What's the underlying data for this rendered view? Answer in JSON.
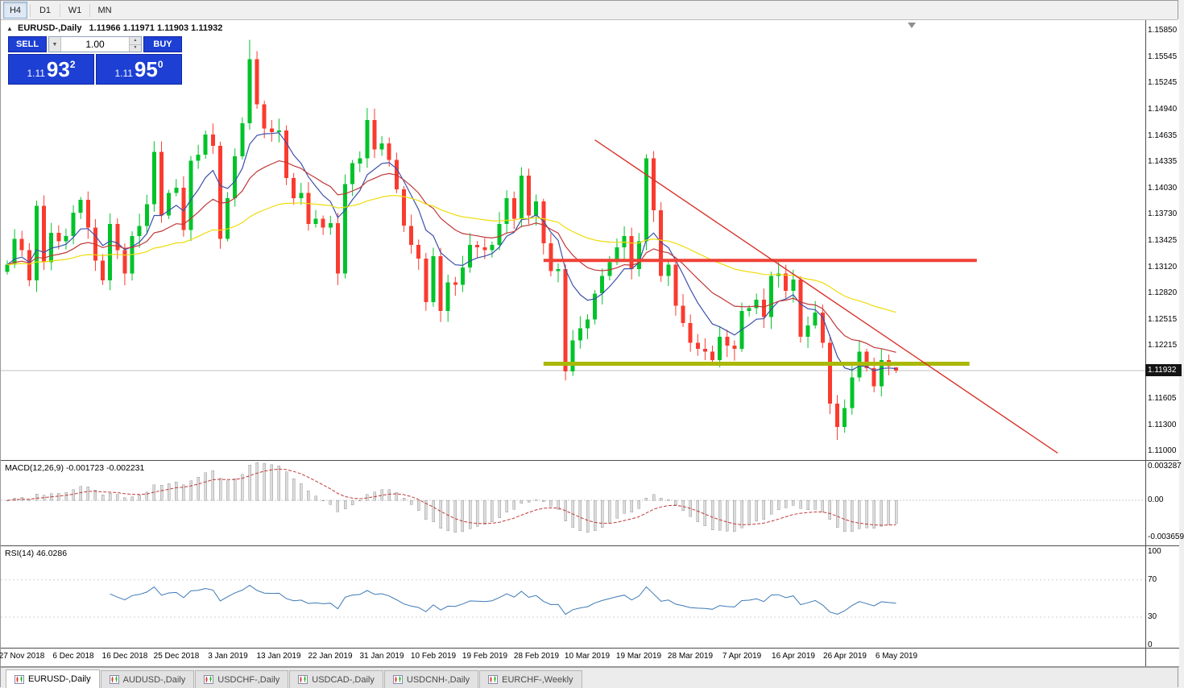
{
  "toolbar": {
    "buttons": [
      {
        "label": "H4",
        "active": true
      },
      {
        "label": "D1",
        "active": false
      },
      {
        "label": "W1",
        "active": false
      },
      {
        "label": "MN",
        "active": false
      }
    ]
  },
  "chart_header": {
    "collapse_icon": "▲",
    "symbol": "EURUSD-,Daily",
    "ohlc": "1.11966 1.11971 1.11903 1.11932"
  },
  "trade_panel": {
    "sell_button": "SELL",
    "buy_button": "BUY",
    "volume": "1.00",
    "icons": {
      "dropdown": "▼",
      "spin_up": "▲",
      "spin_down": "▼"
    },
    "sell_price": {
      "prefix": "1.11",
      "big": "93",
      "sup": "2"
    },
    "buy_price": {
      "prefix": "1.11",
      "big": "95",
      "sup": "0"
    }
  },
  "price_axis": {
    "ticks": [
      "1.15850",
      "1.15545",
      "1.15245",
      "1.14940",
      "1.14635",
      "1.14335",
      "1.14030",
      "1.13730",
      "1.13425",
      "1.13120",
      "1.12820",
      "1.12515",
      "1.12215",
      "1.11605",
      "1.11300",
      "1.11000"
    ],
    "current": {
      "label": "1.11932",
      "value": 1.11932
    }
  },
  "macd_panel": {
    "label": "MACD(12,26,9) -0.001723 -0.002231",
    "axis": [
      {
        "label": "0.003287",
        "value": 0.003287
      },
      {
        "label": "0.00",
        "value": 0
      },
      {
        "label": "-0.003659",
        "value": -0.003659
      }
    ]
  },
  "rsi_panel": {
    "label": "RSI(14) 46.0286",
    "axis": [
      {
        "label": "100",
        "value": 100
      },
      {
        "label": "70",
        "value": 70
      },
      {
        "label": "30",
        "value": 30
      },
      {
        "label": "0",
        "value": 0
      }
    ]
  },
  "date_axis": [
    "27 Nov 2018",
    "6 Dec 2018",
    "16 Dec 2018",
    "25 Dec 2018",
    "3 Jan 2019",
    "13 Jan 2019",
    "22 Jan 2019",
    "31 Jan 2019",
    "10 Feb 2019",
    "19 Feb 2019",
    "28 Feb 2019",
    "10 Mar 2019",
    "19 Mar 2019",
    "28 Mar 2019",
    "7 Apr 2019",
    "16 Apr 2019",
    "26 Apr 2019",
    "6 May 2019"
  ],
  "tabs": [
    {
      "label": "EURUSD-,Daily",
      "active": true
    },
    {
      "label": "AUDUSD-,Daily",
      "active": false
    },
    {
      "label": "USDCHF-,Daily",
      "active": false
    },
    {
      "label": "USDCAD-,Daily",
      "active": false
    },
    {
      "label": "USDCNH-,Daily",
      "active": false
    },
    {
      "label": "EURCHF-,Weekly",
      "active": false
    }
  ],
  "chart_data": {
    "type": "candlestick",
    "title": "EURUSD-,Daily",
    "bars_per_label": 7,
    "first_label_bar": 2,
    "price_range": {
      "max": 1.1598,
      "min": 1.109
    },
    "closes": [
      1.1315,
      1.1345,
      1.1332,
      1.1297,
      1.1383,
      1.1318,
      1.1352,
      1.1342,
      1.1348,
      1.1375,
      1.139,
      1.1358,
      1.132,
      1.1297,
      1.1362,
      1.1332,
      1.1305,
      1.1348,
      1.136,
      1.1385,
      1.1445,
      1.1372,
      1.1398,
      1.1404,
      1.1355,
      1.1435,
      1.1442,
      1.1465,
      1.1452,
      1.1345,
      1.1392,
      1.144,
      1.1478,
      1.1552,
      1.15,
      1.1472,
      1.1468,
      1.147,
      1.1415,
      1.1392,
      1.1398,
      1.1362,
      1.1368,
      1.1358,
      1.1363,
      1.1305,
      1.1408,
      1.1432,
      1.1438,
      1.1482,
      1.1448,
      1.1455,
      1.1436,
      1.1402,
      1.136,
      1.1338,
      1.1322,
      1.1272,
      1.1325,
      1.1262,
      1.1295,
      1.1292,
      1.1312,
      1.1338,
      1.1335,
      1.1332,
      1.1338,
      1.1362,
      1.1392,
      1.1368,
      1.1418,
      1.1372,
      1.1388,
      1.134,
      1.1308,
      1.131,
      1.1192,
      1.1228,
      1.1242,
      1.1252,
      1.1282,
      1.1302,
      1.1318,
      1.1335,
      1.1348,
      1.131,
      1.1342,
      1.1438,
      1.1378,
      1.1302,
      1.1315,
      1.1268,
      1.1248,
      1.1225,
      1.1218,
      1.1215,
      1.1205,
      1.1232,
      1.1222,
      1.1218,
      1.1262,
      1.1265,
      1.1275,
      1.1255,
      1.1302,
      1.1305,
      1.1285,
      1.1298,
      1.1232,
      1.1245,
      1.126,
      1.1225,
      1.1155,
      1.1128,
      1.115,
      1.1185,
      1.1215,
      1.1196,
      1.1175,
      1.1205,
      1.1198,
      1.11932
    ],
    "wick_overrides": [
      {
        "index": 33,
        "extra_high": 0.0015
      },
      {
        "index": 113,
        "extra_low": 0.0008
      }
    ],
    "last_ohlc": {
      "open": 1.11966,
      "high": 1.11971,
      "low": 1.11903,
      "close": 1.11932
    },
    "colors": {
      "up": "#00c32a",
      "down": "#fa3b2f",
      "ma_fast": "#3c50a8",
      "ma_mid": "#c03838",
      "ma_slow": "#eedc0a",
      "trend": "#d8342c",
      "resistance": "#ef4136",
      "support": "#aab807",
      "rsi": "#3d7ab5",
      "macd_hist": "#dcdcdc",
      "macd_signal": "#c23b3b",
      "current_price_line": "#c0c0c0"
    },
    "moving_averages": [
      {
        "type": "ema",
        "period": 8,
        "colorKey": "ma_fast"
      },
      {
        "type": "ema",
        "period": 20,
        "colorKey": "ma_mid"
      },
      {
        "type": "ema",
        "period": 55,
        "colorKey": "ma_slow"
      }
    ],
    "trendline": {
      "from_bar": 80,
      "from_price": 1.1459,
      "to_bar": 143,
      "to_price": 1.1098
    },
    "h_lines": [
      {
        "price": 1.132,
        "from_bar": 73,
        "to_bar": 132,
        "colorKey": "resistance",
        "width": 4
      },
      {
        "price": 1.1201,
        "from_bar": 73,
        "to_bar": 131,
        "colorKey": "support",
        "width": 5
      }
    ],
    "indicators": {
      "macd": {
        "fast": 12,
        "slow": 26,
        "signal": 9,
        "range": {
          "max": 0.00387,
          "min": -0.00442
        }
      },
      "rsi": {
        "period": 14,
        "levels": [
          70,
          30
        ],
        "last_value": 46.0286
      }
    }
  }
}
